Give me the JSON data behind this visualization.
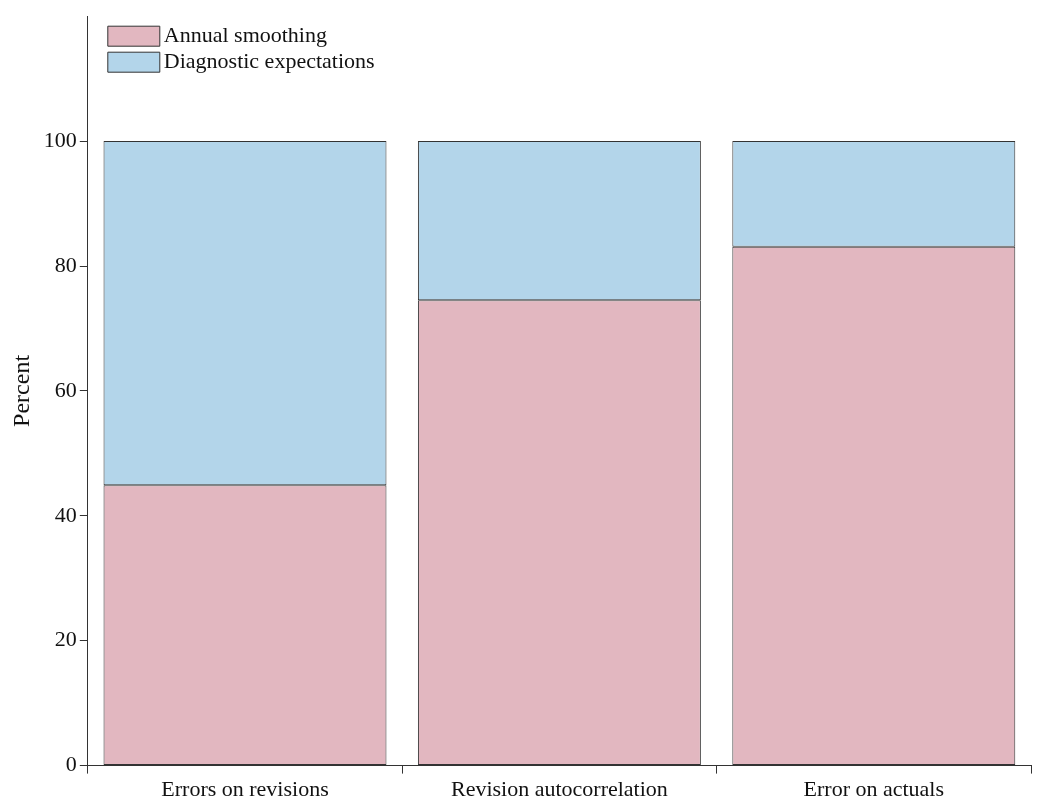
{
  "chart_data": {
    "type": "bar",
    "ylabel": "Percent",
    "categories": [
      "Errors on revisions",
      "Revision autocorrelation",
      "Error on actuals"
    ],
    "stacked": true,
    "legend": "top left",
    "grid": false,
    "series": [
      {
        "name": "Annual smoothing",
        "color": "#e2b7c0",
        "values": [
          44.9,
          74.5,
          83.1
        ]
      },
      {
        "name": "Diagnostic expectations",
        "color": "#b3d5ea",
        "values": [
          55.1,
          25.5,
          16.9
        ]
      }
    ],
    "ylim": [
      0,
      120
    ],
    "yticks": [
      0,
      20,
      40,
      60,
      80,
      100
    ]
  }
}
